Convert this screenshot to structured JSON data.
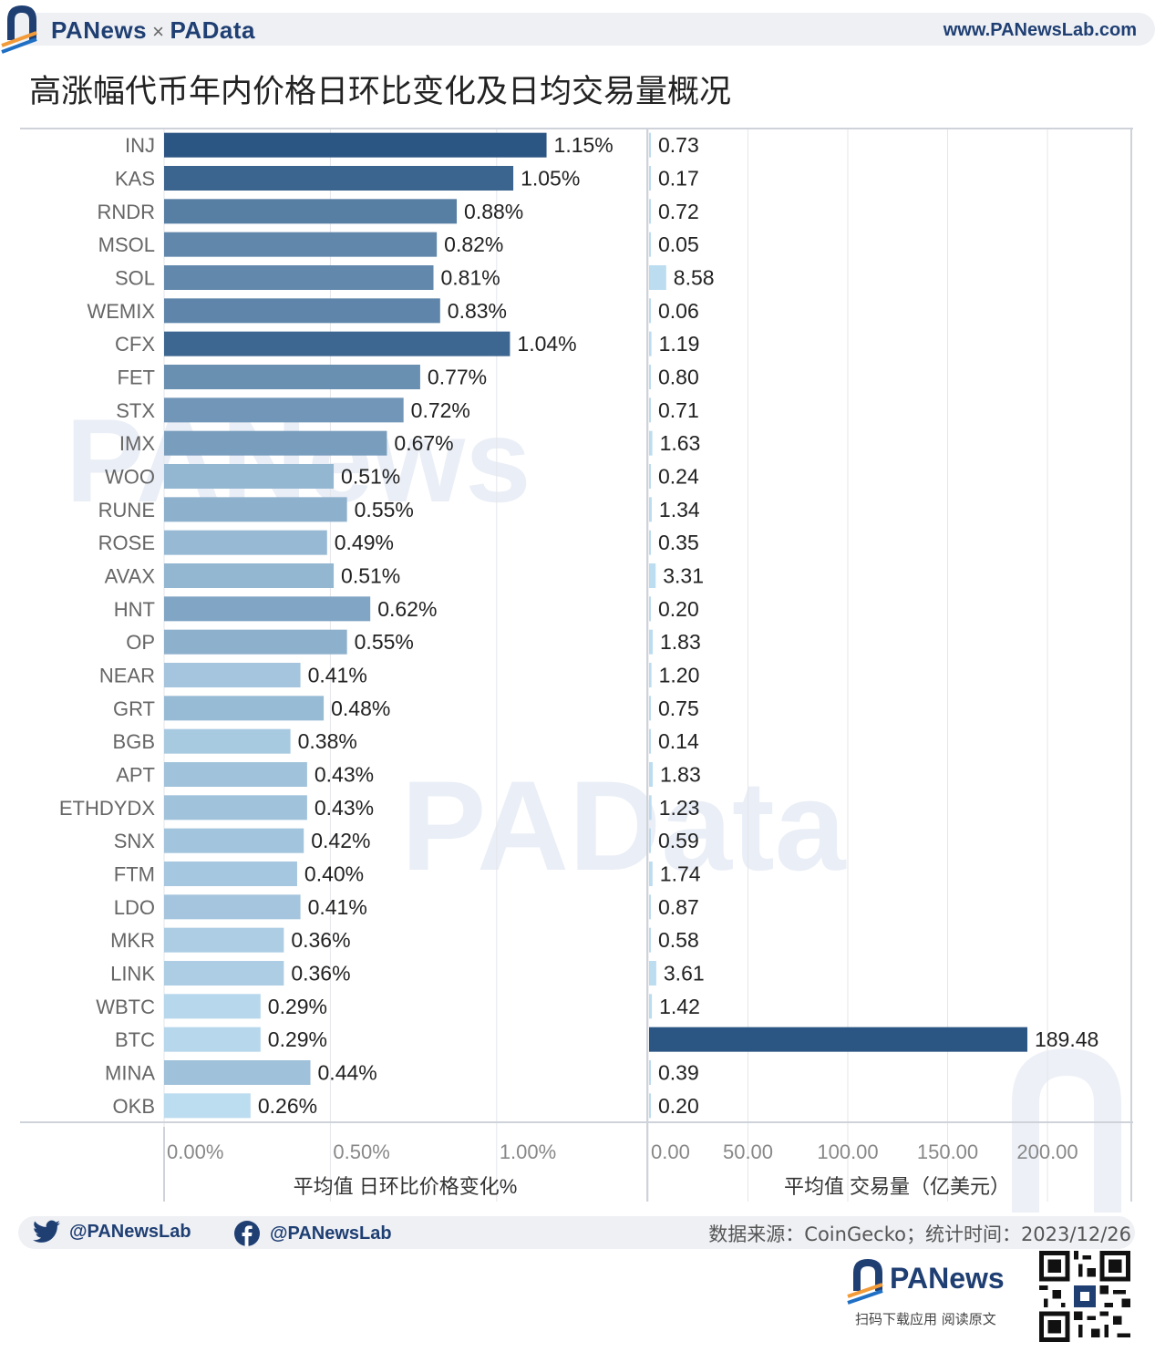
{
  "header": {
    "brand_left": "PANews",
    "brand_sep": "×",
    "brand_right": "PAData",
    "site": "www.PANewsLab.com"
  },
  "title": "高涨幅代币年内价格日环比变化及日均交易量概况",
  "watermarks": [
    "PANews",
    "PAData"
  ],
  "chart_data": [
    {
      "type": "bar",
      "orientation": "horizontal",
      "categories": [
        "INJ",
        "KAS",
        "RNDR",
        "MSOL",
        "SOL",
        "WEMIX",
        "CFX",
        "FET",
        "STX",
        "IMX",
        "WOO",
        "RUNE",
        "ROSE",
        "AVAX",
        "HNT",
        "OP",
        "NEAR",
        "GRT",
        "BGB",
        "APT",
        "ETHDYDX",
        "SNX",
        "FTM",
        "LDO",
        "MKR",
        "LINK",
        "WBTC",
        "BTC",
        "MINA",
        "OKB"
      ],
      "values": [
        1.15,
        1.05,
        0.88,
        0.82,
        0.81,
        0.83,
        1.04,
        0.77,
        0.72,
        0.67,
        0.51,
        0.55,
        0.49,
        0.51,
        0.62,
        0.55,
        0.41,
        0.48,
        0.38,
        0.43,
        0.43,
        0.42,
        0.4,
        0.41,
        0.36,
        0.36,
        0.29,
        0.29,
        0.44,
        0.26
      ],
      "value_labels": [
        "1.15%",
        "1.05%",
        "0.88%",
        "0.82%",
        "0.81%",
        "0.83%",
        "1.04%",
        "0.77%",
        "0.72%",
        "0.67%",
        "0.51%",
        "0.55%",
        "0.49%",
        "0.51%",
        "0.62%",
        "0.55%",
        "0.41%",
        "0.48%",
        "0.38%",
        "0.43%",
        "0.43%",
        "0.42%",
        "0.40%",
        "0.41%",
        "0.36%",
        "0.36%",
        "0.29%",
        "0.29%",
        "0.44%",
        "0.26%"
      ],
      "xlim": [
        0,
        1.45
      ],
      "ticks": [
        0,
        0.5,
        1.0
      ],
      "tick_labels": [
        "0.00%",
        "0.50%",
        "1.00%"
      ],
      "xlabel": "平均值 日环比价格变化%",
      "grid": true,
      "color_scale": {
        "low": "#bcdcf0",
        "high": "#2b5582"
      }
    },
    {
      "type": "bar",
      "orientation": "horizontal",
      "categories": [
        "INJ",
        "KAS",
        "RNDR",
        "MSOL",
        "SOL",
        "WEMIX",
        "CFX",
        "FET",
        "STX",
        "IMX",
        "WOO",
        "RUNE",
        "ROSE",
        "AVAX",
        "HNT",
        "OP",
        "NEAR",
        "GRT",
        "BGB",
        "APT",
        "ETHDYDX",
        "SNX",
        "FTM",
        "LDO",
        "MKR",
        "LINK",
        "WBTC",
        "BTC",
        "MINA",
        "OKB"
      ],
      "values": [
        0.73,
        0.17,
        0.72,
        0.05,
        8.58,
        0.06,
        1.19,
        0.8,
        0.71,
        1.63,
        0.24,
        1.34,
        0.35,
        3.31,
        0.2,
        1.83,
        1.2,
        0.75,
        0.14,
        1.83,
        1.23,
        0.59,
        1.74,
        0.87,
        0.58,
        3.61,
        1.42,
        189.48,
        0.39,
        0.2
      ],
      "value_labels": [
        "0.73",
        "0.17",
        "0.72",
        "0.05",
        "8.58",
        "0.06",
        "1.19",
        "0.80",
        "0.71",
        "1.63",
        "0.24",
        "1.34",
        "0.35",
        "3.31",
        "0.20",
        "1.83",
        "1.20",
        "0.75",
        "0.14",
        "1.83",
        "1.23",
        "0.59",
        "1.74",
        "0.87",
        "0.58",
        "3.61",
        "1.42",
        "189.48",
        "0.39",
        "0.20"
      ],
      "xlim": [
        0,
        242
      ],
      "ticks": [
        0,
        50,
        100,
        150,
        200
      ],
      "tick_labels": [
        "0.00",
        "50.00",
        "100.00",
        "150.00",
        "200.00"
      ],
      "xlabel": "平均值 交易量（亿美元）",
      "grid": true,
      "color_scale": {
        "low": "#bcdcf0",
        "high": "#2b5582"
      }
    }
  ],
  "footer": {
    "twitter_handle": "@PANewsLab",
    "facebook_handle": "@PANewsLab",
    "source": "数据来源：CoinGecko；统计时间：2023/12/26",
    "app_brand": "PANews",
    "app_tag": "扫码下载应用  阅读原文",
    "twitter_icon": "twitter-icon",
    "facebook_icon": "facebook-icon"
  }
}
